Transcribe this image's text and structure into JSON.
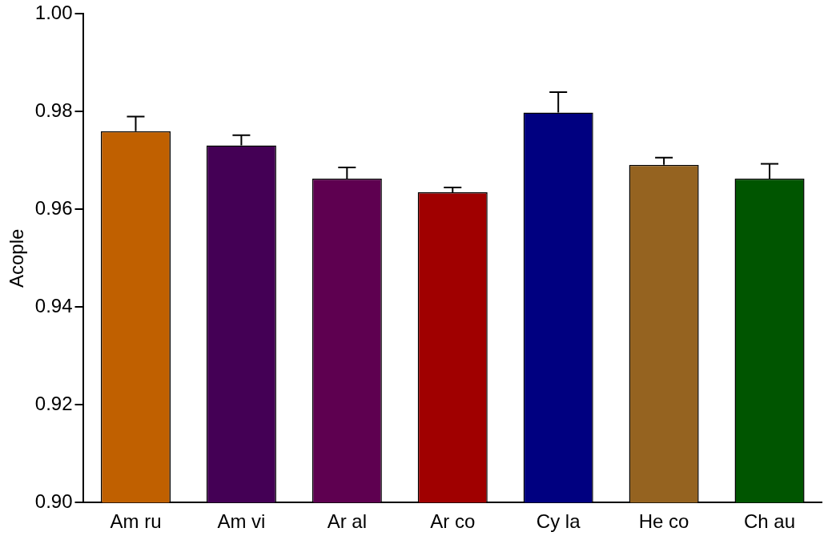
{
  "chart_data": {
    "type": "bar",
    "ylabel": "Acople",
    "categories": [
      "Am ru",
      "Am vi",
      "Ar al",
      "Ar co",
      "Cy la",
      "He co",
      "Ch au"
    ],
    "values": [
      0.976,
      0.9731,
      0.9663,
      0.9635,
      0.9798,
      0.9691,
      0.9663
    ],
    "colors": [
      "#c06000",
      "#440055",
      "#5e0050",
      "#a00000",
      "#000080",
      "#956320",
      "#005500"
    ],
    "errors": [
      [
        0.976,
        0.979
      ],
      [
        0.9731,
        0.9752
      ],
      [
        0.9663,
        0.9686
      ],
      [
        0.9635,
        0.9645
      ],
      [
        0.9798,
        0.984
      ],
      [
        0.9691,
        0.9706
      ],
      [
        0.9663,
        0.9693
      ]
    ],
    "ylim": [
      0.9,
      1.0
    ],
    "yticks": [
      {
        "value": 0.9,
        "label": "0.90"
      },
      0.92,
      0.94,
      0.96,
      0.98,
      {
        "value": 1.0,
        "label": "1.00"
      }
    ],
    "grid": false,
    "legend": false
  }
}
